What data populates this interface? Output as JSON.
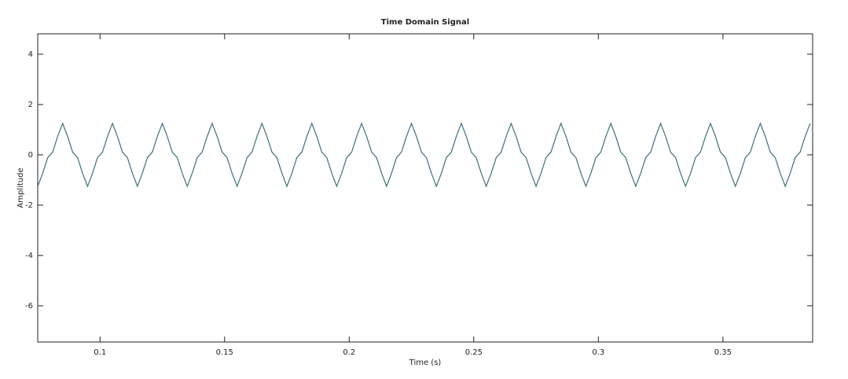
{
  "chart_data": {
    "type": "line",
    "title": "Time Domain Signal",
    "x_label": "Time (s)",
    "y_label": "Amplitude",
    "x": [
      0.075,
      0.077,
      0.079,
      0.081,
      0.083,
      0.085,
      0.087,
      0.089,
      0.091,
      0.093,
      0.095,
      0.097,
      0.099,
      0.101,
      0.103,
      0.105,
      0.107,
      0.109,
      0.111,
      0.113,
      0.115,
      0.117,
      0.119,
      0.121,
      0.123,
      0.125,
      0.127,
      0.129,
      0.131,
      0.133,
      0.135,
      0.137,
      0.139,
      0.141,
      0.143,
      0.145,
      0.147,
      0.149,
      0.151,
      0.153,
      0.155,
      0.157,
      0.159,
      0.161,
      0.163,
      0.165,
      0.167,
      0.169,
      0.171,
      0.173,
      0.175,
      0.177,
      0.179,
      0.181,
      0.183,
      0.185,
      0.187,
      0.189,
      0.191,
      0.193,
      0.195,
      0.197,
      0.199,
      0.201,
      0.203,
      0.205,
      0.207,
      0.209,
      0.211,
      0.213,
      0.215,
      0.217,
      0.219,
      0.221,
      0.223,
      0.225,
      0.227,
      0.229,
      0.231,
      0.233,
      0.235,
      0.237,
      0.239,
      0.241,
      0.243,
      0.245,
      0.247,
      0.249,
      0.251,
      0.253,
      0.255,
      0.257,
      0.259,
      0.261,
      0.263,
      0.265,
      0.267,
      0.269,
      0.271,
      0.273,
      0.275,
      0.277,
      0.279,
      0.281,
      0.283,
      0.285,
      0.287,
      0.289,
      0.291,
      0.293,
      0.295,
      0.297,
      0.299,
      0.301,
      0.303,
      0.305,
      0.307,
      0.309,
      0.311,
      0.313,
      0.315,
      0.317,
      0.319,
      0.321,
      0.323,
      0.325,
      0.327,
      0.329,
      0.331,
      0.333,
      0.335,
      0.337,
      0.339,
      0.341,
      0.343,
      0.345,
      0.347,
      0.349,
      0.351,
      0.353,
      0.355,
      0.357,
      0.359,
      0.361,
      0.363,
      0.365,
      0.367,
      0.369,
      0.371,
      0.373,
      0.375,
      0.377,
      0.379,
      0.381,
      0.383,
      0.385
    ],
    "series": [
      {
        "color": "#3d6f7d",
        "values": [
          -1.25,
          -0.73,
          -0.11,
          0.11,
          0.73,
          1.25,
          0.73,
          0.11,
          -0.11,
          -0.73,
          -1.25,
          -0.73,
          -0.11,
          0.11,
          0.73,
          1.25,
          0.73,
          0.11,
          -0.11,
          -0.73,
          -1.25,
          -0.73,
          -0.11,
          0.11,
          0.73,
          1.25,
          0.73,
          0.11,
          -0.11,
          -0.73,
          -1.25,
          -0.73,
          -0.11,
          0.11,
          0.73,
          1.25,
          0.73,
          0.11,
          -0.11,
          -0.73,
          -1.25,
          -0.73,
          -0.11,
          0.11,
          0.73,
          1.25,
          0.73,
          0.11,
          -0.11,
          -0.73,
          -1.25,
          -0.73,
          -0.11,
          0.11,
          0.73,
          1.25,
          0.73,
          0.11,
          -0.11,
          -0.73,
          -1.25,
          -0.73,
          -0.11,
          0.11,
          0.73,
          1.25,
          0.73,
          0.11,
          -0.11,
          -0.73,
          -1.25,
          -0.73,
          -0.11,
          0.11,
          0.73,
          1.25,
          0.73,
          0.11,
          -0.11,
          -0.73,
          -1.25,
          -0.73,
          -0.11,
          0.11,
          0.73,
          1.25,
          0.73,
          0.11,
          -0.11,
          -0.73,
          -1.25,
          -0.73,
          -0.11,
          0.11,
          0.73,
          1.25,
          0.73,
          0.11,
          -0.11,
          -0.73,
          -1.25,
          -0.73,
          -0.11,
          0.11,
          0.73,
          1.25,
          0.73,
          0.11,
          -0.11,
          -0.73,
          -1.25,
          -0.73,
          -0.11,
          0.11,
          0.73,
          1.25,
          0.73,
          0.11,
          -0.11,
          -0.73,
          -1.25,
          -0.73,
          -0.11,
          0.11,
          0.73,
          1.25,
          0.73,
          0.11,
          -0.11,
          -0.73,
          -1.25,
          -0.73,
          -0.11,
          0.11,
          0.73,
          1.25,
          0.73,
          0.11,
          -0.11,
          -0.73,
          -1.25,
          -0.73,
          -0.11,
          0.11,
          0.73,
          1.25,
          0.73,
          0.11,
          -0.11,
          -0.73,
          -1.25,
          -0.73,
          -0.11,
          0.11,
          0.73,
          1.25
        ]
      }
    ],
    "xlim": [
      0.075,
      0.386
    ],
    "xticks": [
      0.1,
      0.15,
      0.2,
      0.25,
      0.3,
      0.35
    ],
    "ylim": [
      -7.44,
      4.81
    ],
    "yticks": [
      -6,
      -4,
      -2,
      0,
      2,
      4
    ],
    "grid": false
  }
}
